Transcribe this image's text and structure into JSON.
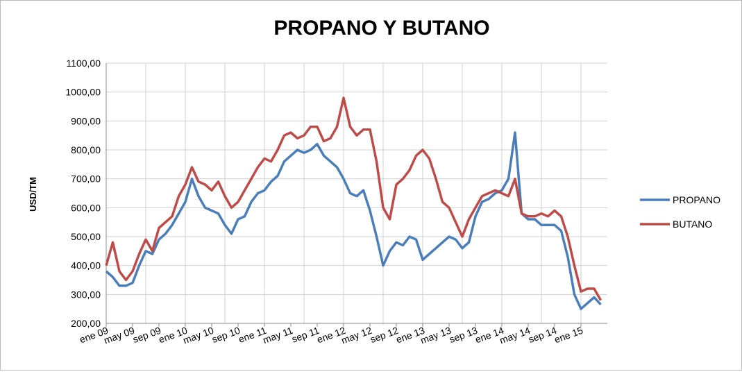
{
  "chart_data": {
    "type": "line",
    "title": "PROPANO Y BUTANO",
    "y_label": "USD/TM",
    "categories": [
      "ene 09",
      null,
      null,
      null,
      "may 09",
      null,
      null,
      null,
      "sep 09",
      null,
      null,
      null,
      "ene 10",
      null,
      null,
      null,
      "may 10",
      null,
      null,
      null,
      "sep 10",
      null,
      null,
      null,
      "ene 11",
      null,
      null,
      null,
      "may 11",
      null,
      null,
      null,
      "sep 11",
      null,
      null,
      null,
      "ene 12",
      null,
      null,
      null,
      "may 12",
      null,
      null,
      null,
      "sep 12",
      null,
      null,
      null,
      "ene 13",
      null,
      null,
      null,
      "may 13",
      null,
      null,
      null,
      "sep 13",
      null,
      null,
      null,
      "ene 14",
      null,
      null,
      null,
      "may 14",
      null,
      null,
      null,
      "sep 14",
      null,
      null,
      null,
      "ene 15",
      null,
      null,
      null
    ],
    "series": [
      {
        "name": "PROPANO",
        "color": "#4a7ebb",
        "values": [
          380,
          360,
          330,
          330,
          340,
          400,
          450,
          440,
          490,
          510,
          540,
          580,
          620,
          700,
          640,
          600,
          590,
          580,
          540,
          510,
          560,
          570,
          620,
          650,
          660,
          690,
          710,
          760,
          780,
          800,
          790,
          800,
          820,
          780,
          760,
          740,
          700,
          650,
          640,
          660,
          590,
          500,
          400,
          450,
          480,
          470,
          500,
          490,
          420,
          440,
          460,
          480,
          500,
          490,
          460,
          480,
          570,
          620,
          630,
          650,
          660,
          700,
          860,
          580,
          560,
          560,
          540,
          540,
          540,
          520,
          430,
          300,
          250,
          270,
          290,
          265
        ]
      },
      {
        "name": "BUTANO",
        "color": "#be4b48",
        "values": [
          400,
          480,
          380,
          350,
          380,
          440,
          490,
          450,
          530,
          550,
          570,
          640,
          680,
          740,
          690,
          680,
          660,
          690,
          640,
          600,
          620,
          660,
          700,
          740,
          770,
          760,
          800,
          850,
          860,
          840,
          850,
          880,
          880,
          830,
          840,
          880,
          980,
          880,
          850,
          870,
          870,
          760,
          600,
          560,
          680,
          700,
          730,
          780,
          800,
          770,
          700,
          620,
          600,
          550,
          500,
          560,
          600,
          640,
          650,
          660,
          650,
          640,
          700,
          580,
          570,
          570,
          580,
          570,
          590,
          570,
          500,
          400,
          310,
          320,
          320,
          280
        ]
      }
    ],
    "ylim": [
      200,
      1100
    ],
    "yticks": [
      {
        "value": 200,
        "label": "200,00"
      },
      {
        "value": 300,
        "label": "300,00"
      },
      {
        "value": 400,
        "label": "400,00"
      },
      {
        "value": 500,
        "label": "500,00"
      },
      {
        "value": 600,
        "label": "600,00"
      },
      {
        "value": 700,
        "label": "700,00"
      },
      {
        "value": 800,
        "label": "800,00"
      },
      {
        "value": 900,
        "label": "900,00"
      },
      {
        "value": 1000,
        "label": "1000,00"
      },
      {
        "value": 1100,
        "label": "1100,00"
      }
    ],
    "grid": true,
    "legend": "right"
  }
}
